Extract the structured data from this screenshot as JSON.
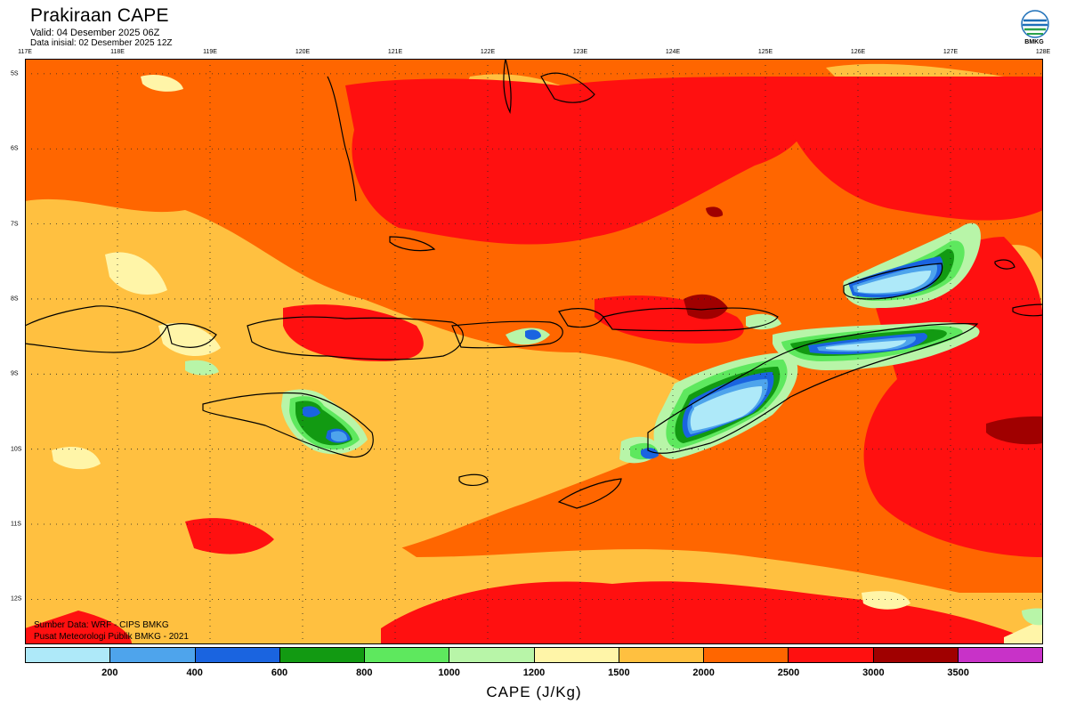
{
  "header": {
    "title": "Prakiraan CAPE",
    "valid": "Valid: 04 Desember 2025 06Z",
    "init": "Data inisial: 02 Desember 2025 12Z"
  },
  "logo": {
    "text": "BMKG",
    "icon": "bmkg-logo-icon"
  },
  "map": {
    "lon_labels": [
      "117E",
      "118E",
      "119E",
      "120E",
      "121E",
      "122E",
      "123E",
      "124E",
      "125E",
      "126E",
      "127E",
      "128E"
    ],
    "lat_labels": [
      "5S",
      "6S",
      "7S",
      "8S",
      "9S",
      "10S",
      "11S",
      "12S"
    ],
    "lon_range": [
      117,
      128
    ],
    "lat_range": [
      -4.8,
      -12.6
    ],
    "base_color": "#ff6600"
  },
  "credits": {
    "source": "Sumber Data: WRF - CIPS BMKG",
    "center": "Pusat Meteorologi Publik BMKG - 2021"
  },
  "legend": {
    "title": "CAPE (J/Kg)",
    "colors": [
      "#aee9f9",
      "#4ea4ec",
      "#1a64e0",
      "#129a12",
      "#5ee85e",
      "#b8f5a8",
      "#fff5a8",
      "#ffc040",
      "#ff6600",
      "#ff1010",
      "#a00000",
      "#c832c8"
    ],
    "ticks": [
      "200",
      "400",
      "600",
      "800",
      "1000",
      "1200",
      "1500",
      "2000",
      "2500",
      "3000",
      "3500"
    ]
  }
}
